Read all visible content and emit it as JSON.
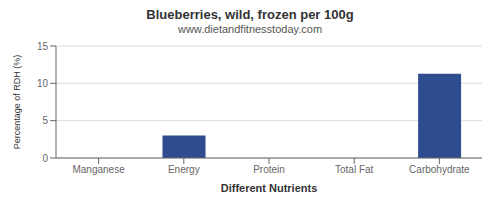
{
  "chart_data": {
    "type": "bar",
    "title": "Blueberries, wild, frozen per 100g",
    "subtitle": "www.dietandfitnesstoday.com",
    "xlabel": "Different Nutrients",
    "ylabel": "Percentage of RDH (%)",
    "categories": [
      "Manganese",
      "Energy",
      "Protein",
      "Total Fat",
      "Carbohydrate"
    ],
    "values": [
      0.0,
      3.0,
      0.0,
      0.0,
      11.3
    ],
    "color": "#2e4d8f",
    "ylim": [
      0,
      15
    ],
    "yticks": [
      0,
      5,
      10,
      15
    ],
    "grid": true
  }
}
